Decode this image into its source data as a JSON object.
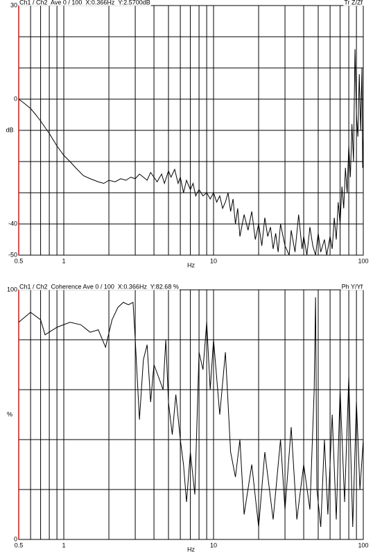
{
  "chart_data": [
    {
      "type": "line",
      "header_left": "Ch1 / Ch2  Ave 0 / 100  X:0.366Hz  Y:2.5700dB",
      "header_right": "Tr Z/Zf",
      "ylabel": "dB",
      "xlabel": "Hz",
      "log_x": true,
      "color": "#000000",
      "y_axis_color": "#ff0000",
      "xlim": [
        0.5,
        100
      ],
      "ylim": [
        -50,
        30
      ],
      "xticks": [
        0.5,
        1,
        10,
        100
      ],
      "yticks": [
        30,
        0,
        -40,
        -50
      ],
      "xgrid": [
        0.6,
        0.7,
        0.8,
        0.9,
        1,
        2,
        3,
        4,
        5,
        6,
        7,
        8,
        9,
        10,
        20,
        30,
        40,
        50,
        60,
        70,
        80,
        90,
        100
      ],
      "ygrid": [
        30,
        20,
        10,
        0,
        -10,
        -20,
        -30,
        -40,
        -50
      ],
      "x": [
        0.5,
        0.55,
        0.6,
        0.65,
        0.7,
        0.8,
        0.9,
        1,
        1.1,
        1.2,
        1.35,
        1.5,
        1.7,
        1.85,
        2,
        2.2,
        2.4,
        2.6,
        2.8,
        3,
        3.2,
        3.4,
        3.6,
        3.8,
        4,
        4.2,
        4.5,
        4.7,
        5,
        5.2,
        5.5,
        5.8,
        6,
        6.3,
        6.6,
        7,
        7.3,
        7.6,
        8,
        8.5,
        9,
        9.5,
        10,
        10.5,
        11,
        11.5,
        12,
        12.5,
        13,
        13.5,
        14,
        14.5,
        15,
        16,
        17,
        18,
        19,
        20,
        21,
        22,
        23,
        24,
        25,
        26,
        27,
        28,
        30,
        32,
        33,
        35,
        37,
        39,
        40,
        42,
        44,
        46,
        48,
        50,
        52,
        55,
        57,
        60,
        62,
        64,
        66,
        68,
        70,
        72,
        74,
        76,
        78,
        80,
        82,
        84,
        86,
        88,
        90,
        92,
        94,
        96,
        98,
        99,
        100
      ],
      "values": [
        0,
        -1.5,
        -3,
        -5,
        -7,
        -11,
        -15,
        -18,
        -20,
        -22,
        -24.5,
        -25.5,
        -26.5,
        -27,
        -26,
        -26.5,
        -25.5,
        -26,
        -25,
        -25.5,
        -24,
        -25,
        -26,
        -23.5,
        -25,
        -26.5,
        -24,
        -27,
        -23,
        -25,
        -22.5,
        -27,
        -25,
        -30,
        -26,
        -29,
        -27,
        -31,
        -29,
        -31,
        -30,
        -32,
        -30,
        -33,
        -31,
        -35,
        -33,
        -30,
        -36,
        -32,
        -40,
        -35,
        -44,
        -37,
        -42,
        -36,
        -45,
        -40,
        -47,
        -38,
        -44,
        -41,
        -48,
        -43,
        -49,
        -40,
        -47,
        -50,
        -42,
        -49,
        -37,
        -48,
        -44,
        -50,
        -41,
        -47,
        -50,
        -43,
        -49,
        -45,
        -50,
        -44,
        -48,
        -38,
        -45,
        -33,
        -40,
        -28,
        -35,
        -22,
        -30,
        -15,
        -25,
        -8,
        -20,
        16,
        -5,
        -12,
        8,
        -10,
        10,
        -22,
        -12
      ]
    },
    {
      "type": "line",
      "header_left": "Ch1 / Ch2  Coherence Ave 0 / 100  X:0.366Hz  Y:82.68 %",
      "header_right": "Ph Y/Yf",
      "ylabel": "%",
      "xlabel": "Hz",
      "log_x": true,
      "color": "#000000",
      "y_axis_color": "#ff0000",
      "xlim": [
        0.5,
        100
      ],
      "ylim": [
        0,
        100
      ],
      "xticks": [
        0.5,
        1,
        10,
        100
      ],
      "yticks": [
        100,
        0
      ],
      "xgrid": [
        0.6,
        0.7,
        0.8,
        0.9,
        1,
        2,
        3,
        4,
        5,
        6,
        7,
        8,
        9,
        10,
        20,
        30,
        40,
        50,
        60,
        70,
        80,
        90,
        100
      ],
      "ygrid": [
        100,
        80,
        60,
        40,
        20,
        0
      ],
      "x": [
        0.5,
        0.6,
        0.7,
        0.75,
        0.9,
        1.1,
        1.3,
        1.5,
        1.7,
        1.9,
        2.1,
        2.3,
        2.5,
        2.7,
        2.9,
        3,
        3.2,
        3.4,
        3.6,
        3.8,
        4,
        4.3,
        4.6,
        4.8,
        5,
        5.3,
        5.6,
        6,
        6.3,
        6.6,
        7,
        7.5,
        8,
        8.5,
        9,
        9.5,
        10,
        11,
        12,
        13,
        14,
        15,
        16,
        18,
        20,
        22,
        25,
        28,
        30,
        33,
        36,
        40,
        44,
        47,
        48,
        49,
        52,
        55,
        58,
        62,
        66,
        70,
        75,
        80,
        85,
        90,
        95,
        100
      ],
      "values": [
        87,
        91,
        88,
        82,
        85,
        87,
        86,
        83,
        84,
        77,
        88,
        93,
        95,
        94,
        95,
        80,
        48,
        72,
        78,
        55,
        70,
        65,
        60,
        80,
        55,
        42,
        58,
        40,
        30,
        15,
        35,
        18,
        75,
        68,
        87,
        60,
        80,
        50,
        75,
        35,
        25,
        40,
        10,
        30,
        5,
        35,
        8,
        40,
        12,
        45,
        8,
        30,
        12,
        60,
        97,
        20,
        5,
        40,
        10,
        50,
        8,
        60,
        15,
        65,
        5,
        55,
        20,
        40
      ]
    }
  ]
}
